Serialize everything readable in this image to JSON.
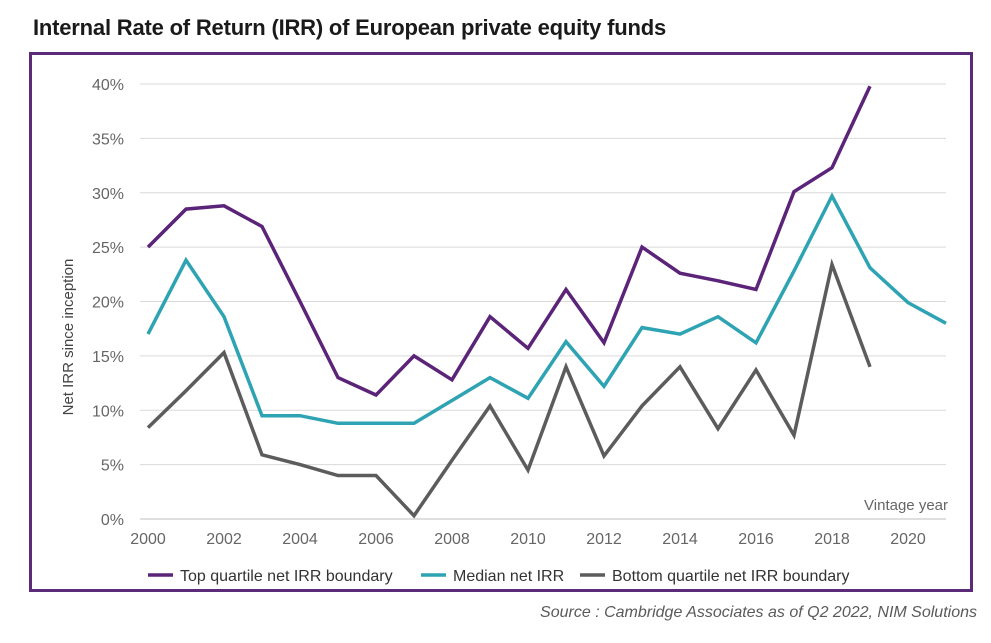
{
  "title": "Internal Rate of Return (IRR) of European private equity funds",
  "source": "Source : Cambridge Associates as of Q2 2022, NIM Solutions",
  "colors": {
    "frame": "#5b2a79",
    "top_quartile": "#5b2479",
    "median": "#2ea3b3",
    "bottom_quartile": "#5c5c5c",
    "grid": "#d9d9d9"
  },
  "chart_data": {
    "type": "line",
    "title": "Internal Rate of Return (IRR) of European private equity funds",
    "xlabel": "Vintage year",
    "ylabel": "Net IRR since inception",
    "xlim": [
      2000,
      2021
    ],
    "ylim": [
      0,
      40
    ],
    "x_ticks": [
      2000,
      2002,
      2004,
      2006,
      2008,
      2010,
      2012,
      2014,
      2016,
      2018,
      2020
    ],
    "y_ticks": [
      0,
      5,
      10,
      15,
      20,
      25,
      30,
      35,
      40
    ],
    "y_tick_labels": [
      "0%",
      "5%",
      "10%",
      "15%",
      "20%",
      "25%",
      "30%",
      "35%",
      "40%"
    ],
    "grid": "horizontal",
    "legend_position": "bottom",
    "series": [
      {
        "name": "Top quartile net IRR boundary",
        "key": "top",
        "x": [
          2000,
          2001,
          2002,
          2003,
          2004,
          2005,
          2006,
          2007,
          2008,
          2009,
          2010,
          2011,
          2012,
          2013,
          2014,
          2015,
          2016,
          2017,
          2018,
          2019
        ],
        "values": [
          25.0,
          28.5,
          28.8,
          26.9,
          20.0,
          13.0,
          11.4,
          15.0,
          12.8,
          18.6,
          15.7,
          21.1,
          16.2,
          25.0,
          22.6,
          21.9,
          21.1,
          30.1,
          32.3,
          39.8
        ]
      },
      {
        "name": "Median net IRR",
        "key": "median",
        "x": [
          2000,
          2001,
          2002,
          2003,
          2004,
          2005,
          2006,
          2007,
          2008,
          2009,
          2010,
          2011,
          2012,
          2013,
          2014,
          2015,
          2016,
          2017,
          2018,
          2019,
          2020,
          2021
        ],
        "values": [
          17.0,
          23.8,
          18.6,
          9.5,
          9.5,
          8.8,
          8.8,
          8.8,
          10.9,
          13.0,
          11.1,
          16.3,
          12.2,
          17.6,
          17.0,
          18.6,
          16.2,
          22.8,
          29.7,
          23.1,
          19.9,
          18.0
        ]
      },
      {
        "name": "Bottom quartile net IRR boundary",
        "key": "bottom",
        "x": [
          2000,
          2001,
          2002,
          2003,
          2004,
          2005,
          2006,
          2007,
          2008,
          2009,
          2010,
          2011,
          2012,
          2013,
          2014,
          2015,
          2016,
          2017,
          2018,
          2019
        ],
        "values": [
          8.4,
          11.8,
          15.3,
          5.9,
          5.0,
          4.0,
          4.0,
          0.3,
          5.4,
          10.4,
          4.5,
          14.0,
          5.8,
          10.4,
          14.0,
          8.3,
          13.7,
          7.7,
          23.4,
          14.0
        ]
      }
    ]
  }
}
